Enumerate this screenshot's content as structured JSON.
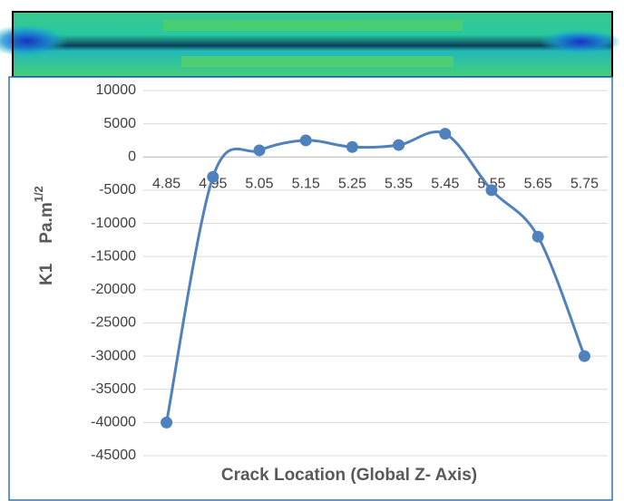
{
  "chart_data": {
    "type": "line",
    "categories": [
      "4.85",
      "4.95",
      "5.05",
      "5.15",
      "5.25",
      "5.35",
      "5.45",
      "5.55",
      "5.65",
      "5.75"
    ],
    "values": [
      -40000,
      -3000,
      1000,
      2500,
      1500,
      1800,
      3500,
      -5000,
      -12000,
      -30000
    ],
    "color": "#4f81bd",
    "ylim": [
      -45000,
      10000
    ],
    "yticks": [
      -45000,
      -40000,
      -35000,
      -30000,
      -25000,
      -20000,
      -15000,
      -10000,
      -5000,
      0,
      5000,
      10000
    ],
    "grid": true,
    "xlabel": "Crack Location (Global Z- Axis)",
    "ylabel": "K1",
    "ylabel_unit": "Pa.m",
    "ylabel_exp": "1/2"
  }
}
